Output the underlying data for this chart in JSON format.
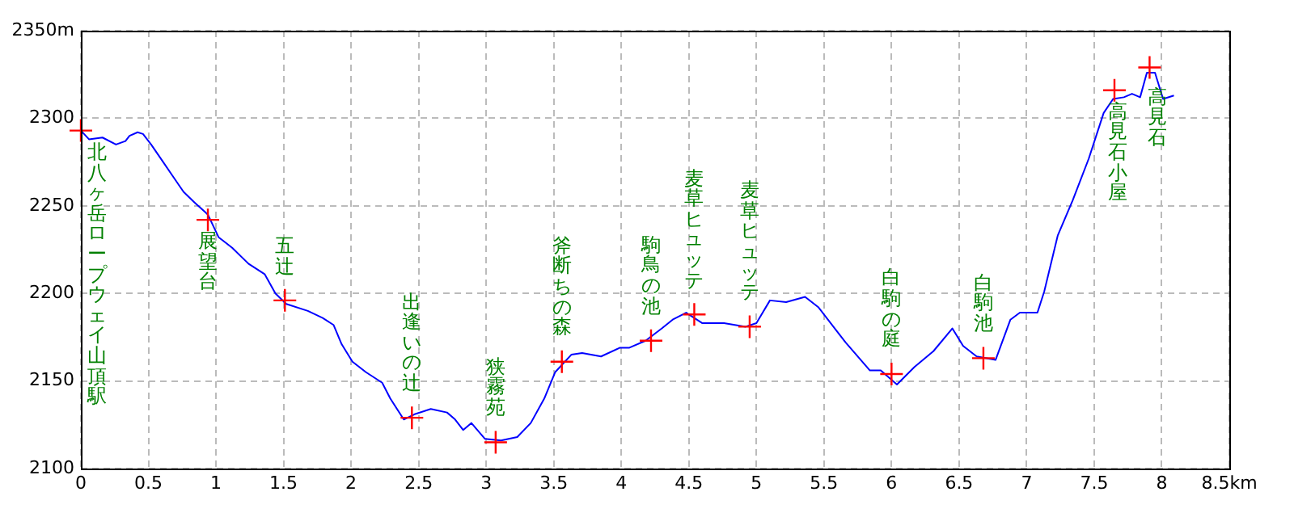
{
  "chart_data": {
    "type": "line",
    "xlim": [
      0,
      8.5
    ],
    "ylim": [
      2100,
      2350
    ],
    "xticks": [
      0,
      0.5,
      1,
      1.5,
      2,
      2.5,
      3,
      3.5,
      4,
      4.5,
      5,
      5.5,
      6,
      6.5,
      7,
      7.5,
      8,
      {
        "value": 8.5,
        "label": "8.5km"
      }
    ],
    "yticks": [
      2100,
      2150,
      2200,
      2250,
      2300,
      {
        "value": 2350,
        "label": "2350m"
      }
    ],
    "grid": true,
    "legend": false,
    "series": [
      {
        "type": "line",
        "color": "#0000ff",
        "marker": "none",
        "line_style": "solid",
        "x": [
          0,
          0.06,
          0.16,
          0.26,
          0.33,
          0.36,
          0.42,
          0.46,
          0.52,
          0.6,
          0.68,
          0.76,
          0.84,
          0.94,
          1.02,
          1.12,
          1.24,
          1.36,
          1.44,
          1.52,
          1.68,
          1.79,
          1.87,
          1.93,
          2.01,
          2.11,
          2.23,
          2.29,
          2.39,
          2.47,
          2.59,
          2.71,
          2.77,
          2.83,
          2.89,
          2.99,
          3.11,
          3.23,
          3.33,
          3.43,
          3.51,
          3.63,
          3.71,
          3.85,
          3.99,
          4.06,
          4.18,
          4.3,
          4.38,
          4.48,
          4.6,
          4.76,
          4.92,
          5.0,
          5.1,
          5.22,
          5.36,
          5.46,
          5.58,
          5.66,
          5.84,
          5.92,
          6.04,
          6.17,
          6.31,
          6.45,
          6.53,
          6.63,
          6.77,
          6.88,
          6.95,
          7.08,
          7.13,
          7.23,
          7.34,
          7.46,
          7.57,
          7.64,
          7.72,
          7.78,
          7.84,
          7.89,
          7.95,
          8.01,
          8.09
        ],
        "values": [
          2293,
          2288,
          2289,
          2285,
          2287,
          2290,
          2292,
          2291,
          2285,
          2276,
          2267,
          2258,
          2252,
          2245,
          2232,
          2226,
          2217,
          2211,
          2200,
          2194,
          2190,
          2186,
          2182,
          2171,
          2161,
          2155,
          2149,
          2140,
          2128,
          2131,
          2134,
          2132,
          2128,
          2122,
          2126,
          2117,
          2116,
          2118,
          2126,
          2140,
          2155,
          2165,
          2166,
          2164,
          2169,
          2169,
          2173,
          2180,
          2185,
          2189,
          2183,
          2183,
          2181,
          2183,
          2196,
          2195,
          2198,
          2192,
          2180,
          2172,
          2156,
          2156,
          2148,
          2158,
          2167,
          2180,
          2170,
          2164,
          2162,
          2185,
          2189,
          2189,
          2201,
          2233,
          2253,
          2277,
          2303,
          2311,
          2312,
          2314,
          2312,
          2326,
          2326,
          2311,
          2313
        ]
      },
      {
        "type": "scatter",
        "color": "#ff0000",
        "marker": "cross",
        "x": [
          0,
          0.94,
          1.51,
          2.45,
          3.07,
          3.56,
          4.22,
          4.54,
          4.95,
          6.0,
          6.68,
          7.65,
          7.91
        ],
        "values": [
          2293,
          2242,
          2196,
          2129,
          2115,
          2161,
          2173,
          2188,
          2181,
          2154,
          2163,
          2316,
          2329
        ]
      }
    ],
    "annotations": [
      "北八ヶ岳ロープウェイ山頂駅",
      {
        "text": "展望台",
        "x": 0.94,
        "y": 2242
      },
      {
        "text": "五辻",
        "x": 1.51,
        "y": 2196
      },
      {
        "text": "出逢いの辻",
        "x": 2.45,
        "y": 2129
      },
      {
        "text": "狭霧苑",
        "x": 3.07,
        "y": 2115
      },
      {
        "text": "斧断ちの森",
        "x": 3.56,
        "y": 2161
      },
      {
        "text": "駒鳥の池",
        "x": 4.22,
        "y": 2173
      },
      {
        "text": "麦草ヒュッテ",
        "x": 4.54,
        "y": 2188
      },
      {
        "text": "麦草ヒュッテ",
        "x": 4.95,
        "y": 2181
      },
      {
        "text": "白駒の庭",
        "x": 6.0,
        "y": 2154
      },
      {
        "text": "白駒池",
        "x": 6.68,
        "y": 2163
      },
      {
        "text": "高見石小屋",
        "x": 7.65,
        "y": 2316
      },
      {
        "text": "高見石",
        "x": 7.91,
        "y": 2329
      }
    ]
  }
}
